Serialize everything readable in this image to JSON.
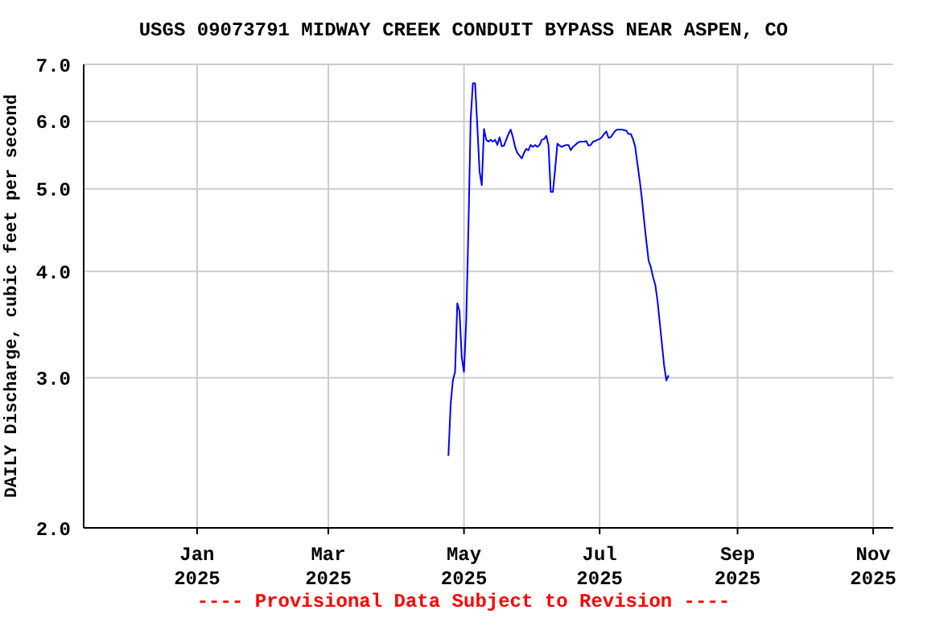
{
  "chart_data": {
    "type": "line",
    "title": "USGS 09073791 MIDWAY CREEK CONDUIT BYPASS NEAR ASPEN, CO",
    "ylabel": "DAILY Discharge, cubic feet per second",
    "annotations": [
      "---- Provisional Data Subject to Revision ----"
    ],
    "x": [
      "2025-04-24",
      "2025-04-25",
      "2025-04-26",
      "2025-04-27",
      "2025-04-28",
      "2025-04-29",
      "2025-04-30",
      "2025-05-01",
      "2025-05-02",
      "2025-05-03",
      "2025-05-04",
      "2025-05-05",
      "2025-05-06",
      "2025-05-07",
      "2025-05-08",
      "2025-05-09",
      "2025-05-10",
      "2025-05-11",
      "2025-05-12",
      "2025-05-13",
      "2025-05-14",
      "2025-05-15",
      "2025-05-16",
      "2025-05-17",
      "2025-05-18",
      "2025-05-19",
      "2025-05-20",
      "2025-05-21",
      "2025-05-22",
      "2025-05-23",
      "2025-05-24",
      "2025-05-25",
      "2025-05-26",
      "2025-05-27",
      "2025-05-28",
      "2025-05-29",
      "2025-05-30",
      "2025-05-31",
      "2025-06-01",
      "2025-06-02",
      "2025-06-03",
      "2025-06-04",
      "2025-06-05",
      "2025-06-06",
      "2025-06-07",
      "2025-06-08",
      "2025-06-09",
      "2025-06-10",
      "2025-06-11",
      "2025-06-12",
      "2025-06-13",
      "2025-06-14",
      "2025-06-15",
      "2025-06-16",
      "2025-06-17",
      "2025-06-18",
      "2025-06-19",
      "2025-06-20",
      "2025-06-21",
      "2025-06-22",
      "2025-06-23",
      "2025-06-24",
      "2025-06-25",
      "2025-06-26",
      "2025-06-27",
      "2025-06-28",
      "2025-06-29",
      "2025-06-30",
      "2025-07-01",
      "2025-07-02",
      "2025-07-03",
      "2025-07-04",
      "2025-07-05",
      "2025-07-06",
      "2025-07-07",
      "2025-07-08",
      "2025-07-09",
      "2025-07-10",
      "2025-07-11",
      "2025-07-12",
      "2025-07-13",
      "2025-07-14",
      "2025-07-15",
      "2025-07-16",
      "2025-07-17",
      "2025-07-18",
      "2025-07-19",
      "2025-07-20",
      "2025-07-21",
      "2025-07-22",
      "2025-07-23",
      "2025-07-24",
      "2025-07-25",
      "2025-07-26",
      "2025-07-27",
      "2025-07-28",
      "2025-07-29",
      "2025-07-30",
      "2025-07-31",
      "2025-08-01"
    ],
    "series": [
      {
        "color": "#0000ff",
        "values": [
          2.43,
          2.79,
          2.98,
          3.05,
          3.67,
          3.59,
          3.17,
          3.05,
          3.5,
          4.5,
          6.03,
          6.65,
          6.65,
          5.93,
          5.24,
          5.05,
          5.88,
          5.71,
          5.68,
          5.71,
          5.68,
          5.71,
          5.63,
          5.75,
          5.61,
          5.62,
          5.71,
          5.8,
          5.87,
          5.75,
          5.6,
          5.51,
          5.47,
          5.43,
          5.51,
          5.57,
          5.55,
          5.63,
          5.6,
          5.63,
          5.6,
          5.63,
          5.71,
          5.72,
          5.77,
          5.63,
          4.96,
          4.96,
          5.28,
          5.65,
          5.62,
          5.6,
          5.62,
          5.63,
          5.63,
          5.55,
          5.6,
          5.63,
          5.66,
          5.68,
          5.68,
          5.68,
          5.69,
          5.62,
          5.63,
          5.68,
          5.69,
          5.71,
          5.72,
          5.75,
          5.8,
          5.84,
          5.74,
          5.75,
          5.8,
          5.85,
          5.87,
          5.87,
          5.87,
          5.86,
          5.85,
          5.8,
          5.8,
          5.72,
          5.6,
          5.35,
          5.12,
          4.87,
          4.59,
          4.34,
          4.12,
          4.05,
          3.94,
          3.86,
          3.7,
          3.49,
          3.29,
          3.1,
          2.98,
          3.02
        ]
      }
    ],
    "xlim": [
      "2024-11-11",
      "2025-11-10"
    ],
    "xticks": [
      {
        "value": "2025-01-01",
        "label": "Jan 2025"
      },
      {
        "value": "2025-03-01",
        "label": "Mar 2025"
      },
      {
        "value": "2025-05-01",
        "label": "May 2025"
      },
      {
        "value": "2025-07-01",
        "label": "Jul 2025"
      },
      {
        "value": "2025-09-01",
        "label": "Sep 2025"
      },
      {
        "value": "2025-11-01",
        "label": "Nov 2025"
      }
    ],
    "log": "y",
    "ylim": [
      2,
      7
    ],
    "yticks": [
      {
        "value": 2,
        "label": "2.0"
      },
      {
        "value": 3,
        "label": "3.0"
      },
      {
        "value": 4,
        "label": "4.0"
      },
      {
        "value": 5,
        "label": "5.0"
      },
      {
        "value": 6,
        "label": "6.0"
      },
      {
        "value": 7,
        "label": "7.0"
      }
    ],
    "grid": true
  }
}
